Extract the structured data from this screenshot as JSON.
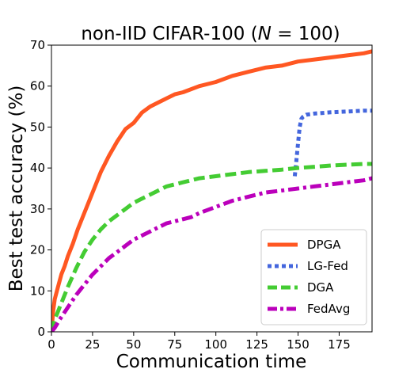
{
  "chart_data": {
    "type": "line",
    "title": {
      "prefix": "non-IID CIFAR-100 (",
      "italic": "N",
      "suffix": " = 100)"
    },
    "xlabel": "Communication time",
    "ylabel": "Best test accuracy (%)",
    "xlim": [
      0,
      195
    ],
    "ylim": [
      0,
      70
    ],
    "xticks": [
      0,
      25,
      50,
      75,
      100,
      125,
      150,
      175
    ],
    "yticks": [
      0,
      10,
      20,
      30,
      40,
      50,
      60,
      70
    ],
    "grid": false,
    "legend_position": "bottom-right",
    "series": [
      {
        "name": "DPGA",
        "color": "#ff5722",
        "style": "solid",
        "x": [
          0,
          1,
          2,
          4,
          6,
          8,
          10,
          13,
          16,
          20,
          25,
          30,
          35,
          40,
          45,
          50,
          55,
          60,
          65,
          70,
          75,
          80,
          90,
          100,
          110,
          120,
          130,
          140,
          150,
          160,
          170,
          180,
          190,
          195
        ],
        "y": [
          0,
          5,
          8,
          11,
          14,
          16,
          18.5,
          21.5,
          25,
          29,
          34,
          39,
          43,
          46.5,
          49.5,
          51,
          53.5,
          55,
          56,
          57,
          58,
          58.5,
          60,
          61,
          62.5,
          63.5,
          64.5,
          65,
          66,
          66.5,
          67,
          67.5,
          68,
          68.5
        ]
      },
      {
        "name": "LG-Fed",
        "color": "#4466dd",
        "style": "dotted",
        "x": [
          148,
          149,
          150,
          151,
          152,
          153,
          155,
          160,
          170,
          180,
          190,
          195
        ],
        "y": [
          38,
          42,
          46,
          50,
          52,
          52.5,
          53,
          53.3,
          53.6,
          53.8,
          54,
          54
        ]
      },
      {
        "name": "DGA",
        "color": "#44cc33",
        "style": "dashed",
        "x": [
          0,
          2,
          5,
          10,
          15,
          20,
          25,
          30,
          35,
          40,
          45,
          50,
          55,
          60,
          65,
          70,
          75,
          80,
          85,
          90,
          100,
          110,
          120,
          130,
          140,
          150,
          160,
          170,
          180,
          190,
          195
        ],
        "y": [
          0,
          3,
          6,
          11,
          15.5,
          19.5,
          22.5,
          25,
          27,
          28.5,
          30,
          31.5,
          32.5,
          33.5,
          34.5,
          35.5,
          36,
          36.5,
          37,
          37.5,
          38,
          38.5,
          39,
          39.3,
          39.6,
          40,
          40.3,
          40.6,
          40.8,
          41,
          41
        ]
      },
      {
        "name": "FedAvg",
        "color": "#bb00bb",
        "style": "dashdot",
        "x": [
          0,
          2,
          5,
          10,
          15,
          20,
          25,
          30,
          35,
          40,
          45,
          50,
          55,
          60,
          65,
          70,
          75,
          80,
          85,
          90,
          100,
          110,
          120,
          130,
          140,
          150,
          160,
          170,
          180,
          190,
          195
        ],
        "y": [
          0,
          1,
          3,
          6,
          9,
          11.5,
          14,
          16,
          18,
          19.5,
          21,
          22.5,
          23.5,
          24.5,
          25.5,
          26.5,
          27,
          27.5,
          28,
          29,
          30.5,
          32,
          33,
          34,
          34.5,
          35,
          35.5,
          36,
          36.5,
          37,
          37.5
        ]
      }
    ]
  }
}
